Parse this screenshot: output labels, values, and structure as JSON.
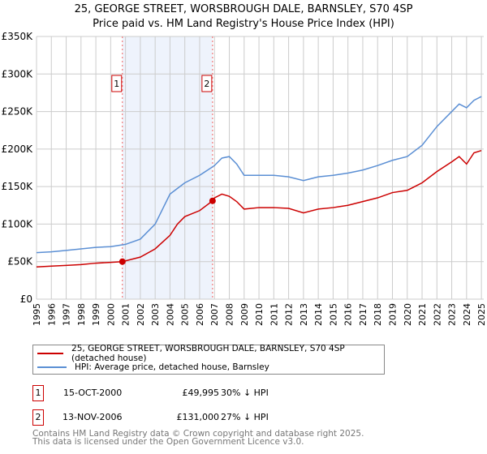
{
  "title": "25, GEORGE STREET, WORSBROUGH DALE, BARNSLEY, S70 4SP",
  "subtitle": "Price paid vs. HM Land Registry's House Price Index (HPI)",
  "chart_data": {
    "type": "line",
    "xlim": [
      1995,
      2025.2
    ],
    "ylim": [
      0,
      350000
    ],
    "yticks": [
      0,
      50000,
      100000,
      150000,
      200000,
      250000,
      300000,
      350000
    ],
    "ytick_labels": [
      "£0",
      "£50K",
      "£100K",
      "£150K",
      "£200K",
      "£250K",
      "£300K",
      "£350K"
    ],
    "xticks": [
      1995,
      1996,
      1997,
      1998,
      1999,
      2000,
      2001,
      2002,
      2003,
      2004,
      2005,
      2006,
      2007,
      2008,
      2009,
      2010,
      2011,
      2012,
      2013,
      2014,
      2015,
      2016,
      2017,
      2018,
      2019,
      2020,
      2021,
      2022,
      2023,
      2024,
      2025
    ],
    "grid": true,
    "shaded_range": [
      2000.79,
      2006.87
    ],
    "series": [
      {
        "name": "25, GEORGE STREET, WORSBROUGH DALE, BARNSLEY, S70 4SP (detached house)",
        "color": "#cc0000",
        "x": [
          1995,
          1996,
          1997,
          1998,
          1999,
          2000,
          2000.79,
          2001,
          2002,
          2003,
          2004,
          2004.5,
          2005,
          2006,
          2006.87,
          2007,
          2007.5,
          2008,
          2008.5,
          2009,
          2010,
          2011,
          2012,
          2013,
          2014,
          2015,
          2016,
          2017,
          2018,
          2019,
          2020,
          2021,
          2022,
          2023,
          2023.5,
          2024,
          2024.5,
          2025
        ],
        "values": [
          43000,
          44000,
          45000,
          46000,
          48000,
          49000,
          49995,
          51000,
          56000,
          67000,
          85000,
          100000,
          110000,
          118000,
          131000,
          135000,
          140000,
          137000,
          130000,
          120000,
          122000,
          122000,
          121000,
          115000,
          120000,
          122000,
          125000,
          130000,
          135000,
          142000,
          145000,
          155000,
          170000,
          183000,
          190000,
          180000,
          195000,
          198000
        ]
      },
      {
        "name": "HPI: Average price, detached house, Barnsley",
        "color": "#5b8fd4",
        "x": [
          1995,
          1996,
          1997,
          1998,
          1999,
          2000,
          2001,
          2002,
          2003,
          2003.5,
          2004,
          2005,
          2006,
          2007,
          2007.5,
          2008,
          2008.5,
          2009,
          2010,
          2011,
          2012,
          2013,
          2014,
          2015,
          2016,
          2017,
          2018,
          2019,
          2020,
          2021,
          2022,
          2023,
          2023.5,
          2024,
          2024.5,
          2025
        ],
        "values": [
          62000,
          63000,
          65000,
          67000,
          69000,
          70000,
          73000,
          80000,
          100000,
          120000,
          140000,
          155000,
          165000,
          178000,
          188000,
          190000,
          180000,
          165000,
          165000,
          165000,
          163000,
          158000,
          163000,
          165000,
          168000,
          172000,
          178000,
          185000,
          190000,
          205000,
          230000,
          250000,
          260000,
          255000,
          265000,
          270000
        ]
      }
    ],
    "markers": [
      {
        "label": "1",
        "x": 2000.79,
        "y": 49995
      },
      {
        "label": "2",
        "x": 2006.87,
        "y": 131000
      }
    ]
  },
  "legend": {
    "red": "25, GEORGE STREET, WORSBROUGH DALE, BARNSLEY, S70 4SP (detached house)",
    "blue": "HPI: Average price, detached house, Barnsley"
  },
  "transactions": [
    {
      "num": "1",
      "date": "15-OCT-2000",
      "price": "£49,995",
      "hpi": "30% ↓ HPI"
    },
    {
      "num": "2",
      "date": "13-NOV-2006",
      "price": "£131,000",
      "hpi": "27% ↓ HPI"
    }
  ],
  "footer": {
    "line1": "Contains HM Land Registry data © Crown copyright and database right 2025.",
    "line2": "This data is licensed under the Open Government Licence v3.0."
  }
}
